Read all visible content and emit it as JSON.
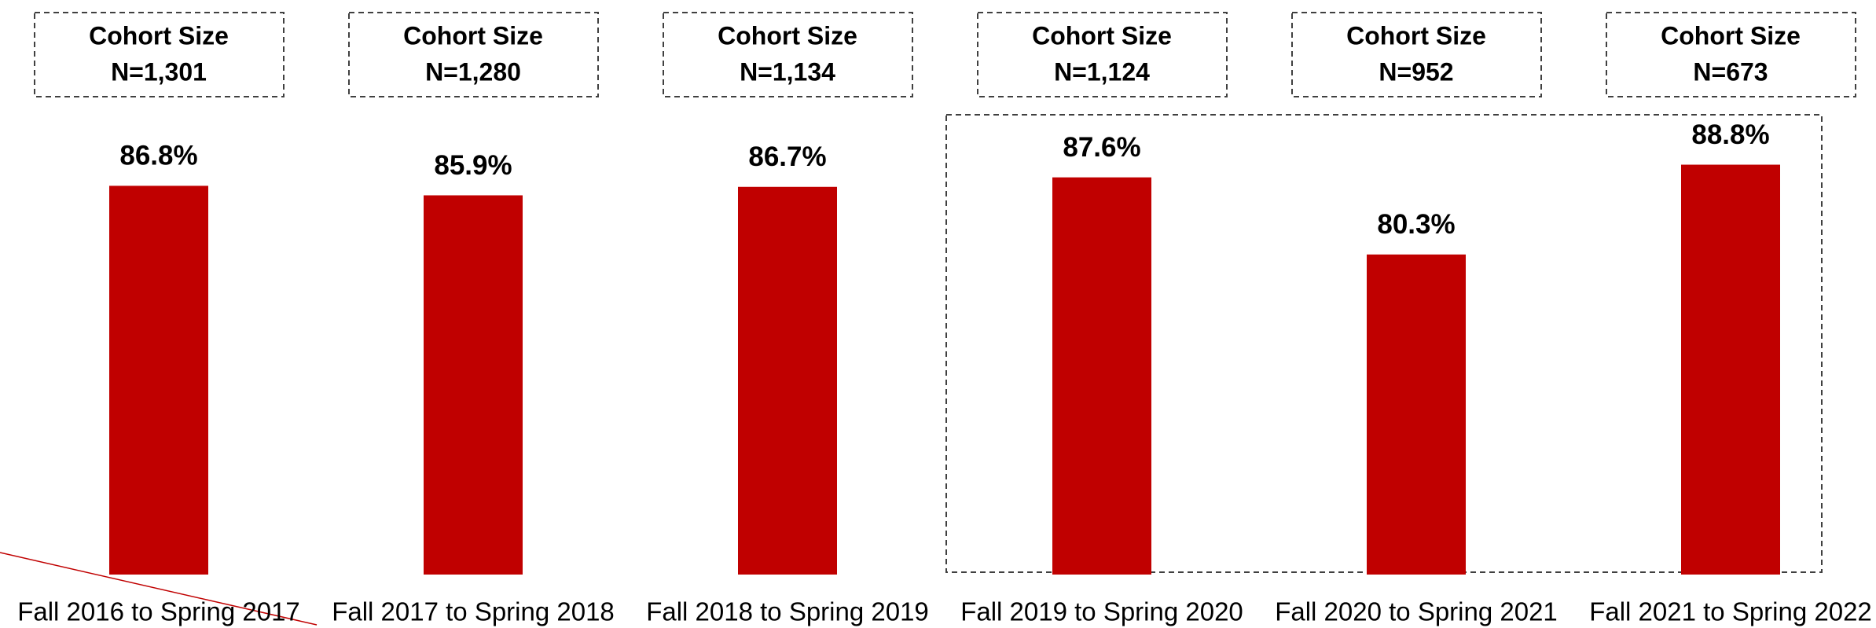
{
  "chart_data": {
    "type": "bar",
    "categories": [
      "Fall 2016 to Spring 2017",
      "Fall 2017 to Spring 2018",
      "Fall 2018 to Spring 2019",
      "Fall 2019 to Spring 2020",
      "Fall 2020 to Spring 2021",
      "Fall 2021 to Spring 2022"
    ],
    "values": [
      86.8,
      85.9,
      86.7,
      87.6,
      80.3,
      88.8
    ],
    "value_labels": [
      "86.8%",
      "85.9%",
      "86.7%",
      "87.6%",
      "80.3%",
      "88.8%"
    ],
    "color": "#c00000",
    "ylim": [
      50,
      100
    ],
    "cohort_title": "Cohort Size",
    "cohorts": [
      "N=1,301",
      "N=1,280",
      "N=1,134",
      "N=1,124",
      "N=952",
      "N=673"
    ]
  }
}
